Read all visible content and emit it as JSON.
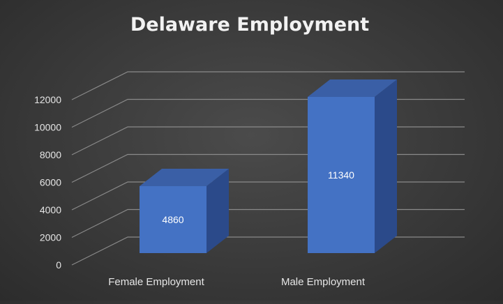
{
  "chart_data": {
    "type": "bar",
    "title": "Delaware Employment",
    "categories": [
      "Female Employment",
      "Male Employment"
    ],
    "values": [
      4860,
      11340
    ],
    "ylim": [
      0,
      12000
    ],
    "yticks": [
      "0",
      "2000",
      "4000",
      "6000",
      "8000",
      "10000",
      "12000"
    ],
    "data_labels": [
      "4860",
      "11340"
    ],
    "grid": true,
    "legend": "none",
    "style": "3d-column"
  },
  "colors": {
    "bar_front": "#4472c4",
    "bar_top": "#3a5fa6",
    "bar_side": "#2b4a8a",
    "gridline": "#8a8a8a",
    "text": "#e6e6e6",
    "title": "#f2f2f2"
  }
}
